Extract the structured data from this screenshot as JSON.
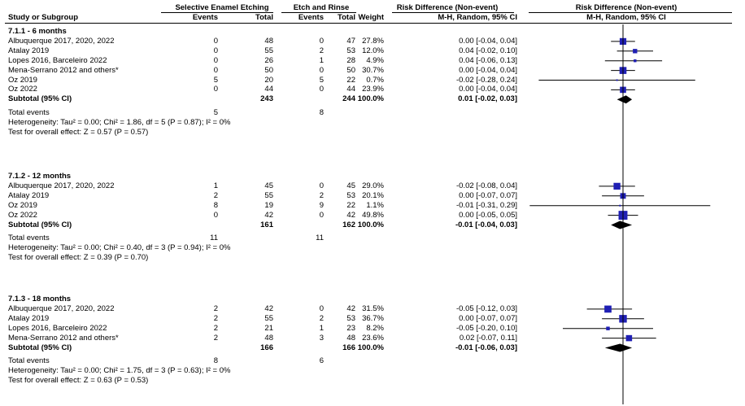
{
  "header": {
    "col_study": "Study or Subgroup",
    "group1": "Selective Enamel Etching",
    "group2": "Etch and Rinse",
    "events": "Events",
    "total": "Total",
    "weight": "Weight",
    "rd_title": "Risk Difference (Non-event)",
    "rd_method": "M-H, Random, 95% CI",
    "plot_title": "Risk Difference (Non-event)",
    "plot_method": "M-H, Random, 95% CI"
  },
  "chart_data": {
    "type": "forest",
    "x_axis": {
      "center": 0
    },
    "subgroups": [
      {
        "title": "7.1.1 - 6 months",
        "studies": [
          {
            "name": "Albuquerque 2017, 2020, 2022",
            "e1": "0",
            "n1": "48",
            "e2": "0",
            "n2": "47",
            "weight": "27.8%",
            "ci": "0.00 [-0.04, 0.04]",
            "est": 0.0,
            "lo": -0.04,
            "hi": 0.04
          },
          {
            "name": "Atalay 2019",
            "e1": "0",
            "n1": "55",
            "e2": "2",
            "n2": "53",
            "weight": "12.0%",
            "ci": "0.04 [-0.02, 0.10]",
            "est": 0.04,
            "lo": -0.02,
            "hi": 0.1
          },
          {
            "name": "Lopes 2016, Barceleiro 2022",
            "e1": "0",
            "n1": "26",
            "e2": "1",
            "n2": "28",
            "weight": "4.9%",
            "ci": "0.04 [-0.06, 0.13]",
            "est": 0.04,
            "lo": -0.06,
            "hi": 0.13
          },
          {
            "name": "Mena-Serrano 2012 and others*",
            "e1": "0",
            "n1": "50",
            "e2": "0",
            "n2": "50",
            "weight": "30.7%",
            "ci": "0.00 [-0.04, 0.04]",
            "est": 0.0,
            "lo": -0.04,
            "hi": 0.04
          },
          {
            "name": "Oz 2019",
            "e1": "5",
            "n1": "20",
            "e2": "5",
            "n2": "22",
            "weight": "0.7%",
            "ci": "-0.02 [-0.28, 0.24]",
            "est": -0.02,
            "lo": -0.28,
            "hi": 0.24
          },
          {
            "name": "Oz 2022",
            "e1": "0",
            "n1": "44",
            "e2": "0",
            "n2": "44",
            "weight": "23.9%",
            "ci": "0.00 [-0.04, 0.04]",
            "est": 0.0,
            "lo": -0.04,
            "hi": 0.04
          }
        ],
        "subtotal": {
          "label": "Subtotal (95% CI)",
          "n1": "243",
          "n2": "244",
          "weight": "100.0%",
          "ci": "0.01 [-0.02, 0.03]",
          "est": 0.01,
          "lo": -0.02,
          "hi": 0.03
        },
        "total_events": {
          "label": "Total events",
          "e1": "5",
          "e2": "8"
        },
        "heterogeneity": "Heterogeneity: Tau² = 0.00; Chi² = 1.86, df = 5 (P = 0.87); I² = 0%",
        "overall": "Test for overall effect: Z = 0.57 (P = 0.57)"
      },
      {
        "title": "7.1.2 - 12 months",
        "studies": [
          {
            "name": "Albuquerque 2017, 2020, 2022",
            "e1": "1",
            "n1": "45",
            "e2": "0",
            "n2": "45",
            "weight": "29.0%",
            "ci": "-0.02 [-0.08, 0.04]",
            "est": -0.02,
            "lo": -0.08,
            "hi": 0.04
          },
          {
            "name": "Atalay 2019",
            "e1": "2",
            "n1": "55",
            "e2": "2",
            "n2": "53",
            "weight": "20.1%",
            "ci": "0.00 [-0.07, 0.07]",
            "est": 0.0,
            "lo": -0.07,
            "hi": 0.07
          },
          {
            "name": "Oz 2019",
            "e1": "8",
            "n1": "19",
            "e2": "9",
            "n2": "22",
            "weight": "1.1%",
            "ci": "-0.01 [-0.31, 0.29]",
            "est": -0.01,
            "lo": -0.31,
            "hi": 0.29
          },
          {
            "name": "Oz 2022",
            "e1": "0",
            "n1": "42",
            "e2": "0",
            "n2": "42",
            "weight": "49.8%",
            "ci": "0.00 [-0.05, 0.05]",
            "est": 0.0,
            "lo": -0.05,
            "hi": 0.05
          }
        ],
        "subtotal": {
          "label": "Subtotal (95% CI)",
          "n1": "161",
          "n2": "162",
          "weight": "100.0%",
          "ci": "-0.01 [-0.04, 0.03]",
          "est": -0.01,
          "lo": -0.04,
          "hi": 0.03
        },
        "total_events": {
          "label": "Total events",
          "e1": "11",
          "e2": "11"
        },
        "heterogeneity": "Heterogeneity: Tau² = 0.00; Chi² = 0.40, df = 3 (P = 0.94); I² = 0%",
        "overall": "Test for overall effect: Z = 0.39 (P = 0.70)"
      },
      {
        "title": "7.1.3 - 18 months",
        "studies": [
          {
            "name": "Albuquerque 2017, 2020, 2022",
            "e1": "2",
            "n1": "42",
            "e2": "0",
            "n2": "42",
            "weight": "31.5%",
            "ci": "-0.05 [-0.12, 0.03]",
            "est": -0.05,
            "lo": -0.12,
            "hi": 0.03
          },
          {
            "name": "Atalay 2019",
            "e1": "2",
            "n1": "55",
            "e2": "2",
            "n2": "53",
            "weight": "36.7%",
            "ci": "0.00 [-0.07, 0.07]",
            "est": 0.0,
            "lo": -0.07,
            "hi": 0.07
          },
          {
            "name": "Lopes 2016, Barceleiro 2022",
            "e1": "2",
            "n1": "21",
            "e2": "1",
            "n2": "23",
            "weight": "8.2%",
            "ci": "-0.05 [-0.20, 0.10]",
            "est": -0.05,
            "lo": -0.2,
            "hi": 0.1
          },
          {
            "name": "Mena-Serrano 2012 and others*",
            "e1": "2",
            "n1": "48",
            "e2": "3",
            "n2": "48",
            "weight": "23.6%",
            "ci": "0.02 [-0.07, 0.11]",
            "est": 0.02,
            "lo": -0.07,
            "hi": 0.11
          }
        ],
        "subtotal": {
          "label": "Subtotal (95% CI)",
          "n1": "166",
          "n2": "166",
          "weight": "100.0%",
          "ci": "-0.01 [-0.06, 0.03]",
          "est": -0.01,
          "lo": -0.06,
          "hi": 0.03
        },
        "total_events": {
          "label": "Total events",
          "e1": "8",
          "e2": "6"
        },
        "heterogeneity": "Heterogeneity: Tau² = 0.00; Chi² = 1.75, df = 3 (P = 0.63); I² = 0%",
        "overall": "Test for overall effect: Z = 0.63 (P = 0.53)"
      }
    ]
  },
  "colors": {
    "marker": "#1f1fb4",
    "diamond": "#000000",
    "line": "#000000"
  }
}
